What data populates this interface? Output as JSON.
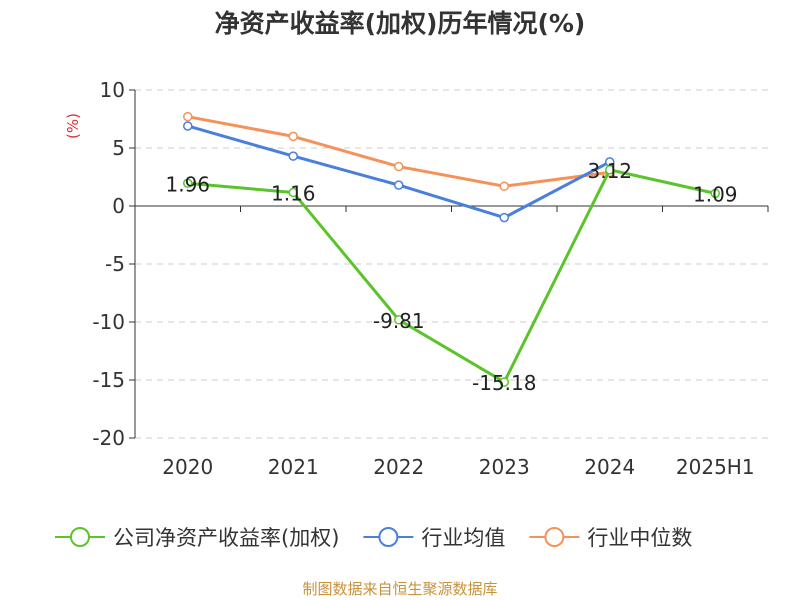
{
  "chart_data": {
    "type": "line",
    "title": "净资产收益率(加权)历年情况(%)",
    "ylabel": "(%)",
    "xlabel": "",
    "categories": [
      "2020",
      "2021",
      "2022",
      "2023",
      "2024",
      "2025H1"
    ],
    "ylim": [
      -20,
      10
    ],
    "yticks": [
      10,
      5,
      0,
      -5,
      -10,
      -15,
      -20
    ],
    "grid": true,
    "legend_position": "bottom",
    "series": [
      {
        "name": "公司净资产收益率(加权)",
        "color": "#5bc42b",
        "values": [
          1.96,
          1.16,
          -9.81,
          -15.18,
          3.12,
          1.09
        ],
        "labels": [
          "1.96",
          "1.16",
          "-9.81",
          "-15.18",
          "3.12",
          "1.09"
        ]
      },
      {
        "name": "行业均值",
        "color": "#4a7fdb",
        "values": [
          6.9,
          4.3,
          1.8,
          -1.0,
          3.8,
          null
        ]
      },
      {
        "name": "行业中位数",
        "color": "#f4925a",
        "values": [
          7.7,
          6.0,
          3.4,
          1.7,
          2.9,
          null
        ]
      }
    ]
  },
  "source_note": "制图数据来自恒生聚源数据库"
}
